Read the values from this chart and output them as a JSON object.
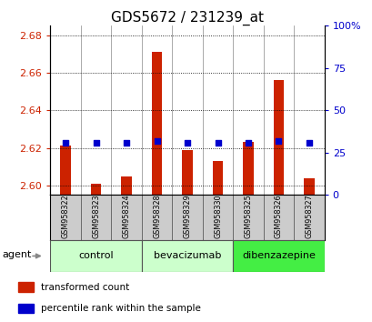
{
  "title": "GDS5672 / 231239_at",
  "samples": [
    "GSM958322",
    "GSM958323",
    "GSM958324",
    "GSM958328",
    "GSM958329",
    "GSM958330",
    "GSM958325",
    "GSM958326",
    "GSM958327"
  ],
  "bar_values": [
    2.621,
    2.601,
    2.605,
    2.671,
    2.619,
    2.613,
    2.623,
    2.656,
    2.604
  ],
  "percentile_values": [
    31,
    31,
    31,
    32,
    31,
    31,
    31,
    32,
    31
  ],
  "ylim_left": [
    2.595,
    2.685
  ],
  "ylim_right": [
    0,
    100
  ],
  "yticks_left": [
    2.6,
    2.62,
    2.64,
    2.66,
    2.68
  ],
  "yticks_right": [
    0,
    25,
    50,
    75,
    100
  ],
  "bar_color": "#CC2200",
  "dot_color": "#0000CC",
  "bar_base": 2.595,
  "groups": [
    {
      "label": "control",
      "start": 0,
      "end": 2,
      "color": "#CCFFCC"
    },
    {
      "label": "bevacizumab",
      "start": 3,
      "end": 5,
      "color": "#CCFFCC"
    },
    {
      "label": "dibenzazepine",
      "start": 6,
      "end": 8,
      "color": "#44EE44"
    }
  ],
  "agent_label": "agent",
  "legend_bar_label": "transformed count",
  "legend_dot_label": "percentile rank within the sample",
  "tick_fontsize": 8,
  "title_fontsize": 11
}
